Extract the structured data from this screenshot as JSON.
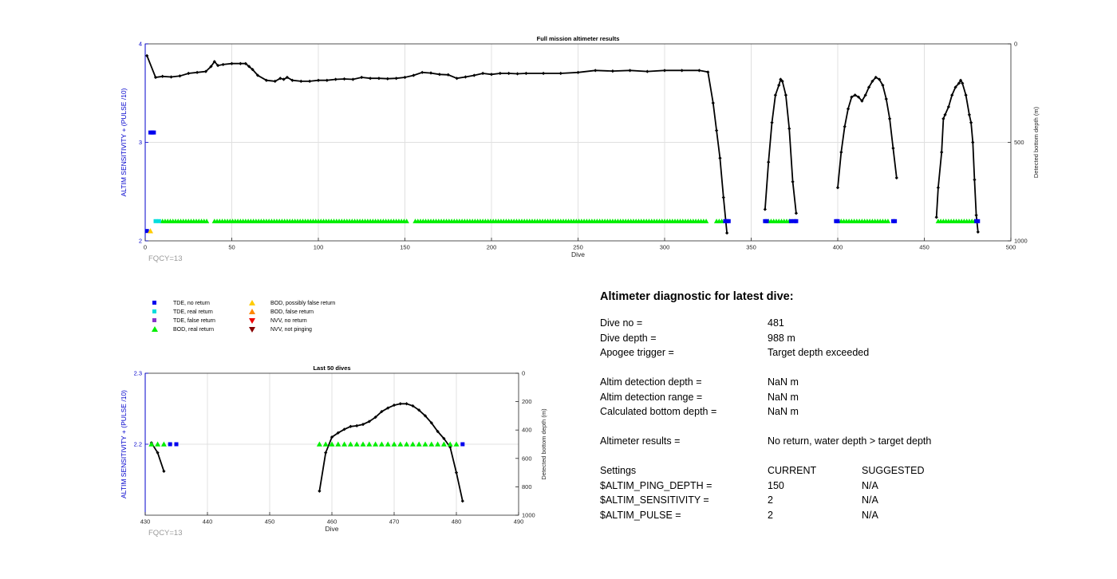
{
  "chart_data": [
    {
      "type": "line",
      "title": "Full mission altimeter results",
      "xlabel": "Dive",
      "ylabel": "ALTIM SENSITIVITY + (PULSE /10)",
      "y2label": "Detected bottom depth (m)",
      "xlim": [
        0,
        500
      ],
      "ylim": [
        2,
        4
      ],
      "y2lim": [
        1000,
        0
      ],
      "xticks": [
        0,
        50,
        100,
        150,
        200,
        250,
        300,
        350,
        400,
        450,
        500
      ],
      "yticks": [
        2,
        3,
        4
      ],
      "y2ticks": [
        0,
        500,
        1000
      ],
      "grid": true,
      "annotation": "FQCY=13",
      "depth_series": {
        "dive_ranges": [
          [
            1,
            1
          ],
          [
            6,
            336
          ],
          [
            358,
            374
          ],
          [
            400,
            433
          ],
          [
            457,
            481
          ]
        ],
        "points": [
          [
            1,
            60
          ],
          [
            6,
            170
          ],
          [
            10,
            165
          ],
          [
            15,
            168
          ],
          [
            20,
            163
          ],
          [
            25,
            150
          ],
          [
            30,
            145
          ],
          [
            35,
            140
          ],
          [
            38,
            115
          ],
          [
            40,
            90
          ],
          [
            42,
            110
          ],
          [
            45,
            105
          ],
          [
            50,
            100
          ],
          [
            55,
            100
          ],
          [
            58,
            100
          ],
          [
            60,
            115
          ],
          [
            62,
            130
          ],
          [
            65,
            160
          ],
          [
            70,
            185
          ],
          [
            75,
            190
          ],
          [
            78,
            175
          ],
          [
            80,
            180
          ],
          [
            82,
            170
          ],
          [
            85,
            185
          ],
          [
            90,
            190
          ],
          [
            95,
            190
          ],
          [
            100,
            185
          ],
          [
            105,
            185
          ],
          [
            110,
            180
          ],
          [
            115,
            178
          ],
          [
            120,
            180
          ],
          [
            125,
            170
          ],
          [
            130,
            175
          ],
          [
            135,
            175
          ],
          [
            140,
            177
          ],
          [
            145,
            175
          ],
          [
            150,
            170
          ],
          [
            155,
            160
          ],
          [
            160,
            145
          ],
          [
            165,
            148
          ],
          [
            170,
            155
          ],
          [
            175,
            157
          ],
          [
            180,
            175
          ],
          [
            185,
            168
          ],
          [
            190,
            160
          ],
          [
            195,
            150
          ],
          [
            200,
            155
          ],
          [
            205,
            150
          ],
          [
            210,
            150
          ],
          [
            215,
            152
          ],
          [
            220,
            150
          ],
          [
            230,
            150
          ],
          [
            240,
            150
          ],
          [
            250,
            145
          ],
          [
            260,
            135
          ],
          [
            270,
            138
          ],
          [
            280,
            135
          ],
          [
            290,
            140
          ],
          [
            300,
            135
          ],
          [
            310,
            135
          ],
          [
            320,
            135
          ],
          [
            325,
            143
          ],
          [
            328,
            300
          ],
          [
            330,
            440
          ],
          [
            332,
            580
          ],
          [
            334,
            780
          ],
          [
            336,
            960
          ],
          [
            358,
            840
          ],
          [
            360,
            600
          ],
          [
            362,
            400
          ],
          [
            364,
            260
          ],
          [
            366,
            210
          ],
          [
            367,
            180
          ],
          [
            368,
            190
          ],
          [
            370,
            260
          ],
          [
            372,
            430
          ],
          [
            374,
            700
          ],
          [
            376,
            860
          ],
          [
            400,
            730
          ],
          [
            402,
            550
          ],
          [
            404,
            420
          ],
          [
            406,
            330
          ],
          [
            408,
            270
          ],
          [
            410,
            260
          ],
          [
            412,
            270
          ],
          [
            414,
            290
          ],
          [
            416,
            260
          ],
          [
            418,
            220
          ],
          [
            420,
            190
          ],
          [
            422,
            170
          ],
          [
            424,
            180
          ],
          [
            426,
            210
          ],
          [
            428,
            280
          ],
          [
            430,
            380
          ],
          [
            432,
            530
          ],
          [
            434,
            680
          ],
          [
            457,
            880
          ],
          [
            458,
            730
          ],
          [
            460,
            550
          ],
          [
            461,
            380
          ],
          [
            462,
            360
          ],
          [
            464,
            320
          ],
          [
            466,
            260
          ],
          [
            468,
            220
          ],
          [
            470,
            200
          ],
          [
            471,
            185
          ],
          [
            472,
            200
          ],
          [
            474,
            260
          ],
          [
            476,
            360
          ],
          [
            477,
            400
          ],
          [
            478,
            500
          ],
          [
            479,
            690
          ],
          [
            480,
            870
          ],
          [
            481,
            955
          ]
        ]
      },
      "markers": {
        "tde_no_return": [
          [
            3,
            3.1
          ],
          [
            4,
            3.1
          ],
          [
            5,
            3.1
          ],
          [
            1,
            2.1
          ],
          [
            335,
            2.2
          ],
          [
            336,
            2.2
          ],
          [
            337,
            2.2
          ],
          [
            358,
            2.2
          ],
          [
            359,
            2.2
          ],
          [
            373,
            2.2
          ],
          [
            375,
            2.2
          ],
          [
            376,
            2.2
          ],
          [
            399,
            2.2
          ],
          [
            400,
            2.2
          ],
          [
            432,
            2.2
          ],
          [
            433,
            2.2
          ],
          [
            480,
            2.2
          ],
          [
            481,
            2.2
          ]
        ],
        "tde_real_return": [
          [
            6,
            2.2
          ],
          [
            8,
            2.2
          ]
        ],
        "bod_possibly_false_return": [
          [
            3,
            2.1
          ]
        ],
        "bod_real_return_ranges": [
          [
            10,
            36
          ],
          [
            40,
            151
          ],
          [
            156,
            325
          ],
          [
            330,
            334
          ],
          [
            360,
            372
          ],
          [
            402,
            430
          ],
          [
            458,
            479
          ]
        ]
      }
    },
    {
      "type": "line",
      "title": "Last 50 dives",
      "xlabel": "Dive",
      "ylabel": "ALTIM SENSITIVITY + (PULSE /10)",
      "y2label": "Detected bottom depth (m)",
      "xlim": [
        430,
        490
      ],
      "ylim": [
        2.1,
        2.3
      ],
      "y2lim": [
        1000,
        0
      ],
      "xticks": [
        430,
        440,
        450,
        460,
        470,
        480,
        490
      ],
      "yticks": [
        2.2,
        2.3
      ],
      "y2ticks": [
        0,
        200,
        400,
        600,
        800,
        1000
      ],
      "grid": true,
      "annotation": "FQCY=13",
      "depth_series": {
        "points_a": [
          [
            431,
            490
          ],
          [
            432,
            560
          ],
          [
            433,
            690
          ]
        ],
        "points_b": [
          [
            458,
            830
          ],
          [
            459,
            560
          ],
          [
            460,
            450
          ],
          [
            461,
            420
          ],
          [
            462,
            395
          ],
          [
            463,
            375
          ],
          [
            464,
            370
          ],
          [
            465,
            360
          ],
          [
            466,
            340
          ],
          [
            467,
            310
          ],
          [
            468,
            270
          ],
          [
            469,
            245
          ],
          [
            470,
            225
          ],
          [
            471,
            215
          ],
          [
            472,
            215
          ],
          [
            473,
            230
          ],
          [
            474,
            260
          ],
          [
            475,
            300
          ],
          [
            476,
            350
          ],
          [
            477,
            410
          ],
          [
            478,
            460
          ],
          [
            479,
            520
          ],
          [
            480,
            700
          ],
          [
            481,
            900
          ]
        ]
      },
      "markers": {
        "bod_real_return": [
          431,
          432,
          433,
          458,
          459,
          460,
          461,
          462,
          463,
          464,
          465,
          466,
          467,
          468,
          469,
          470,
          471,
          472,
          473,
          474,
          475,
          476,
          477,
          478,
          479,
          480
        ],
        "tde_no_return": [
          434,
          435,
          481
        ],
        "level": 2.2
      }
    }
  ],
  "legend": {
    "items": [
      {
        "label": "TDE, no return",
        "shape": "square",
        "color": "#0000ee"
      },
      {
        "label": "TDE, real return",
        "shape": "square",
        "color": "#00dddd"
      },
      {
        "label": "TDE, false return",
        "shape": "square",
        "color": "#8833cc"
      },
      {
        "label": "BOD, real return",
        "shape": "triangle-up",
        "color": "#00ee00"
      },
      {
        "label": "BOD, possibly false return",
        "shape": "triangle-up",
        "color": "#ffcc00"
      },
      {
        "label": "BOD, false return",
        "shape": "triangle-up",
        "color": "#ff8800"
      },
      {
        "label": "NVV, no return",
        "shape": "triangle-down",
        "color": "#ee0000"
      },
      {
        "label": "NVV, not pinging",
        "shape": "triangle-down",
        "color": "#880000"
      }
    ]
  },
  "diagnostic": {
    "title": "Altimeter diagnostic for latest dive:",
    "dive_no_label": "Dive no =",
    "dive_no_value": "481",
    "dive_depth_label": "Dive depth =",
    "dive_depth_value": "988 m",
    "apogee_label": "Apogee trigger =",
    "apogee_value": "Target depth exceeded",
    "det_depth_label": "Altim detection depth =",
    "det_depth_value": "NaN m",
    "det_range_label": "Altim detection range =",
    "det_range_value": "NaN m",
    "calc_bottom_label": "Calculated bottom depth =",
    "calc_bottom_value": "NaN m",
    "results_label": "Altimeter results =",
    "results_value": "No return, water depth > target depth",
    "settings_label": "Settings",
    "current_label": "CURRENT",
    "suggested_label": "SUGGESTED",
    "ping_depth_label": "$ALTIM_PING_DEPTH =",
    "ping_depth_current": "150",
    "ping_depth_suggested": "N/A",
    "sensitivity_label": "$ALTIM_SENSITIVITY =",
    "sensitivity_current": "2",
    "sensitivity_suggested": "N/A",
    "pulse_label": "$ALTIM_PULSE =",
    "pulse_current": "2",
    "pulse_suggested": "N/A"
  },
  "colors": {
    "axis_left": "#0000cc",
    "grid": "#e0e0e0",
    "line": "#000000",
    "annotation": "#999999"
  }
}
